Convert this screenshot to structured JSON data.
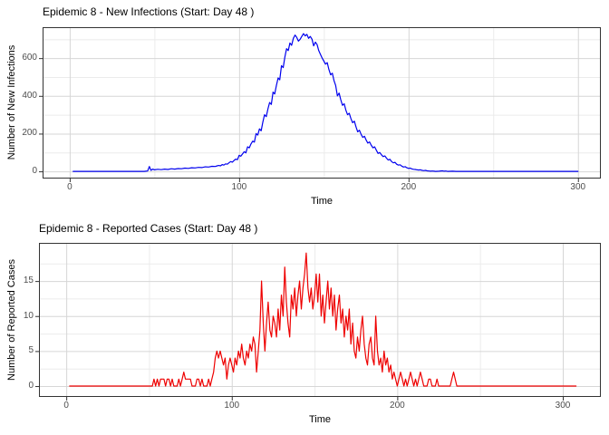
{
  "theme": {
    "background": "#ffffff",
    "grid_major_color": "#d6d6d6",
    "grid_minor_color": "#ebebeb",
    "panel_border_color": "#333333",
    "tick_color": "#333333",
    "tick_label_color": "#4d4d4d",
    "text_color": "#000000"
  },
  "chart_data": [
    {
      "type": "line",
      "title": "Epidemic 8 - New Infections (Start: Day 48 )",
      "xlabel": "Time",
      "ylabel": "Number of New Infections",
      "line_color": "#0000EE",
      "grid": true,
      "legend": "none",
      "x_ticks": [
        0,
        100,
        200,
        300
      ],
      "x_minor_ticks": [
        50,
        150,
        250
      ],
      "y_ticks": [
        0,
        200,
        400,
        600
      ],
      "y_minor_ticks": [
        100,
        300,
        500,
        700
      ],
      "xlim": [
        -16,
        313.5
      ],
      "ylim": [
        -38,
        764
      ],
      "points": [
        [
          2,
          0
        ],
        [
          30,
          0
        ],
        [
          44,
          0
        ],
        [
          45,
          1
        ],
        [
          46,
          2
        ],
        [
          47,
          26
        ],
        [
          48,
          5
        ],
        [
          49,
          12
        ],
        [
          50,
          8
        ],
        [
          52,
          11
        ],
        [
          54,
          9
        ],
        [
          56,
          12
        ],
        [
          58,
          10
        ],
        [
          60,
          14
        ],
        [
          62,
          12
        ],
        [
          64,
          15
        ],
        [
          66,
          14
        ],
        [
          68,
          17
        ],
        [
          70,
          16
        ],
        [
          72,
          19
        ],
        [
          74,
          18
        ],
        [
          76,
          21
        ],
        [
          78,
          20
        ],
        [
          80,
          24
        ],
        [
          82,
          23
        ],
        [
          84,
          27
        ],
        [
          86,
          26
        ],
        [
          87,
          29
        ],
        [
          88,
          31
        ],
        [
          89,
          29
        ],
        [
          90,
          36
        ],
        [
          91,
          33
        ],
        [
          92,
          40
        ],
        [
          93,
          38
        ],
        [
          94,
          45
        ],
        [
          95,
          52
        ],
        [
          96,
          49
        ],
        [
          97,
          58
        ],
        [
          98,
          65
        ],
        [
          99,
          62
        ],
        [
          100,
          85
        ],
        [
          101,
          80
        ],
        [
          102,
          92
        ],
        [
          103,
          104
        ],
        [
          104,
          98
        ],
        [
          105,
          130
        ],
        [
          106,
          125
        ],
        [
          107,
          145
        ],
        [
          108,
          160
        ],
        [
          109,
          155
        ],
        [
          110,
          200
        ],
        [
          111,
          192
        ],
        [
          112,
          225
        ],
        [
          113,
          215
        ],
        [
          114,
          260
        ],
        [
          115,
          300
        ],
        [
          116,
          290
        ],
        [
          117,
          330
        ],
        [
          118,
          365
        ],
        [
          119,
          355
        ],
        [
          120,
          420
        ],
        [
          121,
          410
        ],
        [
          122,
          455
        ],
        [
          123,
          495
        ],
        [
          124,
          485
        ],
        [
          125,
          560
        ],
        [
          126,
          550
        ],
        [
          127,
          605
        ],
        [
          128,
          650
        ],
        [
          129,
          640
        ],
        [
          130,
          680
        ],
        [
          131,
          668
        ],
        [
          132,
          705
        ],
        [
          133,
          722
        ],
        [
          134,
          710
        ],
        [
          135,
          690
        ],
        [
          136,
          700
        ],
        [
          137,
          715
        ],
        [
          138,
          730
        ],
        [
          139,
          718
        ],
        [
          140,
          726
        ],
        [
          141,
          705
        ],
        [
          142,
          715
        ],
        [
          143,
          700
        ],
        [
          144,
          665
        ],
        [
          145,
          685
        ],
        [
          146,
          672
        ],
        [
          147,
          640
        ],
        [
          148,
          620
        ],
        [
          149,
          600
        ],
        [
          150,
          585
        ],
        [
          151,
          568
        ],
        [
          152,
          576
        ],
        [
          153,
          540
        ],
        [
          154,
          512
        ],
        [
          155,
          520
        ],
        [
          156,
          480
        ],
        [
          157,
          455
        ],
        [
          158,
          400
        ],
        [
          159,
          415
        ],
        [
          160,
          380
        ],
        [
          161,
          350
        ],
        [
          162,
          358
        ],
        [
          163,
          325
        ],
        [
          164,
          300
        ],
        [
          165,
          308
        ],
        [
          166,
          280
        ],
        [
          167,
          258
        ],
        [
          168,
          266
        ],
        [
          169,
          235
        ],
        [
          170,
          210
        ],
        [
          171,
          218
        ],
        [
          172,
          196
        ],
        [
          173,
          180
        ],
        [
          174,
          186
        ],
        [
          175,
          165
        ],
        [
          176,
          150
        ],
        [
          177,
          156
        ],
        [
          178,
          138
        ],
        [
          179,
          125
        ],
        [
          180,
          130
        ],
        [
          181,
          112
        ],
        [
          182,
          95
        ],
        [
          183,
          100
        ],
        [
          184,
          88
        ],
        [
          185,
          78
        ],
        [
          186,
          82
        ],
        [
          187,
          70
        ],
        [
          188,
          60
        ],
        [
          189,
          64
        ],
        [
          190,
          52
        ],
        [
          191,
          45
        ],
        [
          192,
          48
        ],
        [
          193,
          38
        ],
        [
          194,
          33
        ],
        [
          195,
          35
        ],
        [
          196,
          28
        ],
        [
          197,
          23
        ],
        [
          198,
          25
        ],
        [
          199,
          19
        ],
        [
          200,
          16
        ],
        [
          201,
          17
        ],
        [
          202,
          13
        ],
        [
          203,
          11
        ],
        [
          204,
          10
        ],
        [
          205,
          8
        ],
        [
          206,
          7
        ],
        [
          207,
          8
        ],
        [
          208,
          5
        ],
        [
          209,
          4
        ],
        [
          210,
          5
        ],
        [
          211,
          3
        ],
        [
          212,
          2
        ],
        [
          213,
          1
        ],
        [
          214,
          2
        ],
        [
          215,
          1
        ],
        [
          216,
          0
        ],
        [
          218,
          1
        ],
        [
          220,
          3
        ],
        [
          221,
          1
        ],
        [
          222,
          2
        ],
        [
          223,
          0
        ],
        [
          226,
          1
        ],
        [
          228,
          0
        ],
        [
          240,
          0
        ],
        [
          260,
          0
        ],
        [
          280,
          0
        ],
        [
          300,
          0
        ]
      ]
    },
    {
      "type": "line",
      "title": "Epidemic 8 - Reported Cases (Start: Day 48 )",
      "xlabel": "Time",
      "ylabel": "Number of Reported Cases",
      "line_color": "#EE0000",
      "grid": true,
      "legend": "none",
      "x_ticks": [
        0,
        100,
        200,
        300
      ],
      "x_minor_ticks": [
        50,
        150,
        250
      ],
      "y_ticks": [
        0,
        5,
        10,
        15
      ],
      "y_minor_ticks": [
        2.5,
        7.5,
        12.5,
        17.5
      ],
      "xlim": [
        -16.5,
        323
      ],
      "ylim": [
        -1.55,
        20.45
      ],
      "points": [
        [
          2,
          0
        ],
        [
          20,
          0
        ],
        [
          40,
          0
        ],
        [
          50,
          0
        ],
        [
          52,
          0
        ],
        [
          53,
          1
        ],
        [
          54,
          0
        ],
        [
          55,
          1
        ],
        [
          56,
          0
        ],
        [
          57,
          1
        ],
        [
          58,
          1
        ],
        [
          59,
          1
        ],
        [
          60,
          0
        ],
        [
          61,
          1
        ],
        [
          62,
          1
        ],
        [
          63,
          0
        ],
        [
          64,
          1
        ],
        [
          65,
          0
        ],
        [
          67,
          0
        ],
        [
          68,
          1
        ],
        [
          69,
          0
        ],
        [
          70,
          1
        ],
        [
          71,
          2
        ],
        [
          72,
          1
        ],
        [
          73,
          1
        ],
        [
          74,
          1
        ],
        [
          75,
          1
        ],
        [
          76,
          0
        ],
        [
          78,
          0
        ],
        [
          79,
          1
        ],
        [
          80,
          1
        ],
        [
          81,
          0
        ],
        [
          82,
          1
        ],
        [
          83,
          0
        ],
        [
          85,
          0
        ],
        [
          86,
          1
        ],
        [
          87,
          0
        ],
        [
          88,
          1
        ],
        [
          89,
          2
        ],
        [
          90,
          4
        ],
        [
          91,
          5
        ],
        [
          92,
          4
        ],
        [
          93,
          5
        ],
        [
          94,
          4
        ],
        [
          95,
          3
        ],
        [
          96,
          4
        ],
        [
          97,
          1
        ],
        [
          98,
          3
        ],
        [
          99,
          4
        ],
        [
          100,
          3
        ],
        [
          101,
          2
        ],
        [
          102,
          4
        ],
        [
          103,
          3
        ],
        [
          104,
          5
        ],
        [
          105,
          4
        ],
        [
          106,
          6
        ],
        [
          107,
          4
        ],
        [
          108,
          3
        ],
        [
          109,
          5
        ],
        [
          110,
          4
        ],
        [
          111,
          6
        ],
        [
          112,
          5
        ],
        [
          113,
          7
        ],
        [
          114,
          6
        ],
        [
          115,
          2
        ],
        [
          116,
          5
        ],
        [
          117,
          8
        ],
        [
          118,
          15
        ],
        [
          119,
          9
        ],
        [
          120,
          5
        ],
        [
          121,
          9
        ],
        [
          122,
          12
        ],
        [
          123,
          8
        ],
        [
          124,
          7
        ],
        [
          125,
          10
        ],
        [
          126,
          9
        ],
        [
          127,
          7
        ],
        [
          128,
          11
        ],
        [
          129,
          8
        ],
        [
          130,
          13
        ],
        [
          131,
          10
        ],
        [
          132,
          17
        ],
        [
          133,
          12
        ],
        [
          134,
          9
        ],
        [
          135,
          7
        ],
        [
          136,
          13
        ],
        [
          137,
          11
        ],
        [
          138,
          14
        ],
        [
          139,
          10
        ],
        [
          140,
          13
        ],
        [
          141,
          15
        ],
        [
          142,
          11
        ],
        [
          143,
          14
        ],
        [
          144,
          16
        ],
        [
          145,
          19
        ],
        [
          146,
          14
        ],
        [
          147,
          12
        ],
        [
          148,
          14
        ],
        [
          149,
          11
        ],
        [
          150,
          13
        ],
        [
          151,
          16
        ],
        [
          152,
          12
        ],
        [
          153,
          16
        ],
        [
          154,
          10
        ],
        [
          155,
          13
        ],
        [
          156,
          9
        ],
        [
          157,
          12
        ],
        [
          158,
          15
        ],
        [
          159,
          11
        ],
        [
          160,
          14
        ],
        [
          161,
          10
        ],
        [
          162,
          13
        ],
        [
          163,
          8
        ],
        [
          164,
          11
        ],
        [
          165,
          13
        ],
        [
          166,
          9
        ],
        [
          167,
          11
        ],
        [
          168,
          7
        ],
        [
          169,
          10
        ],
        [
          170,
          8
        ],
        [
          171,
          11
        ],
        [
          172,
          6
        ],
        [
          173,
          9
        ],
        [
          174,
          5
        ],
        [
          175,
          4
        ],
        [
          176,
          7
        ],
        [
          177,
          5
        ],
        [
          178,
          8
        ],
        [
          179,
          10
        ],
        [
          180,
          6
        ],
        [
          181,
          4
        ],
        [
          182,
          3
        ],
        [
          183,
          6
        ],
        [
          184,
          7
        ],
        [
          185,
          4
        ],
        [
          186,
          3
        ],
        [
          187,
          10
        ],
        [
          188,
          5
        ],
        [
          189,
          3
        ],
        [
          190,
          4
        ],
        [
          191,
          2
        ],
        [
          192,
          5
        ],
        [
          193,
          3
        ],
        [
          194,
          4
        ],
        [
          195,
          2
        ],
        [
          196,
          3
        ],
        [
          197,
          1
        ],
        [
          198,
          2
        ],
        [
          199,
          1
        ],
        [
          200,
          0
        ],
        [
          201,
          1
        ],
        [
          202,
          2
        ],
        [
          203,
          1
        ],
        [
          204,
          0
        ],
        [
          205,
          1
        ],
        [
          206,
          0
        ],
        [
          207,
          1
        ],
        [
          208,
          2
        ],
        [
          209,
          1
        ],
        [
          210,
          0
        ],
        [
          211,
          1
        ],
        [
          212,
          0
        ],
        [
          213,
          1
        ],
        [
          214,
          2
        ],
        [
          215,
          1
        ],
        [
          216,
          0
        ],
        [
          218,
          0
        ],
        [
          219,
          1
        ],
        [
          220,
          1
        ],
        [
          221,
          0
        ],
        [
          223,
          0
        ],
        [
          224,
          1
        ],
        [
          225,
          0
        ],
        [
          228,
          0
        ],
        [
          232,
          0
        ],
        [
          233,
          1
        ],
        [
          234,
          2
        ],
        [
          235,
          1
        ],
        [
          236,
          0
        ],
        [
          240,
          0
        ],
        [
          260,
          0
        ],
        [
          280,
          0
        ],
        [
          300,
          0
        ],
        [
          308,
          0
        ]
      ]
    }
  ]
}
